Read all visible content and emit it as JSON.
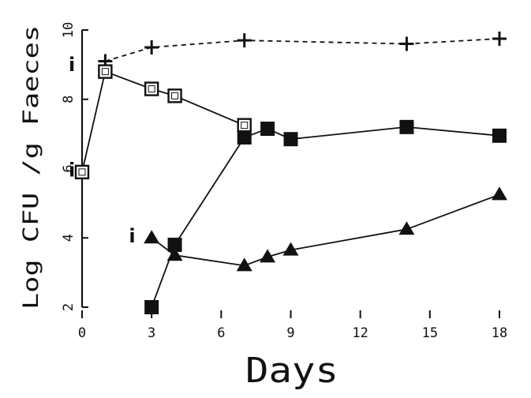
{
  "chart_data": {
    "type": "line",
    "xlabel": "Days",
    "ylabel": "Log CFU /g Faeces",
    "xlim": [
      0,
      18
    ],
    "ylim": [
      2,
      10
    ],
    "xticks": [
      0,
      3,
      6,
      9,
      12,
      15,
      18
    ],
    "yticks": [
      2,
      4,
      6,
      8,
      10
    ],
    "grid": false,
    "series": [
      {
        "marker": "plus",
        "style": "dashed",
        "x": [
          1,
          3,
          7,
          14,
          18
        ],
        "y": [
          9.1,
          9.5,
          9.7,
          9.6,
          9.75
        ]
      },
      {
        "marker": "open-square",
        "style": "solid",
        "x": [
          0,
          1,
          3,
          4,
          7
        ],
        "y": [
          5.9,
          8.8,
          8.3,
          8.1,
          7.25
        ]
      },
      {
        "marker": "filled-square",
        "style": "solid",
        "x": [
          3,
          4,
          7,
          8,
          9,
          14,
          18
        ],
        "y": [
          2.0,
          3.8,
          6.9,
          7.15,
          6.85,
          7.2,
          6.95
        ]
      },
      {
        "marker": "filled-triangle",
        "style": "solid",
        "x": [
          3,
          4,
          7,
          8,
          9,
          14,
          18
        ],
        "y": [
          4.0,
          3.5,
          3.2,
          3.45,
          3.65,
          4.25,
          5.25
        ]
      }
    ],
    "annotations": [
      {
        "text": "i",
        "x": -0.3,
        "y": 5.95
      },
      {
        "text": "i",
        "x": 2.3,
        "y": 4.05
      },
      {
        "text": "i",
        "x": -0.3,
        "y": 9.0
      }
    ]
  }
}
